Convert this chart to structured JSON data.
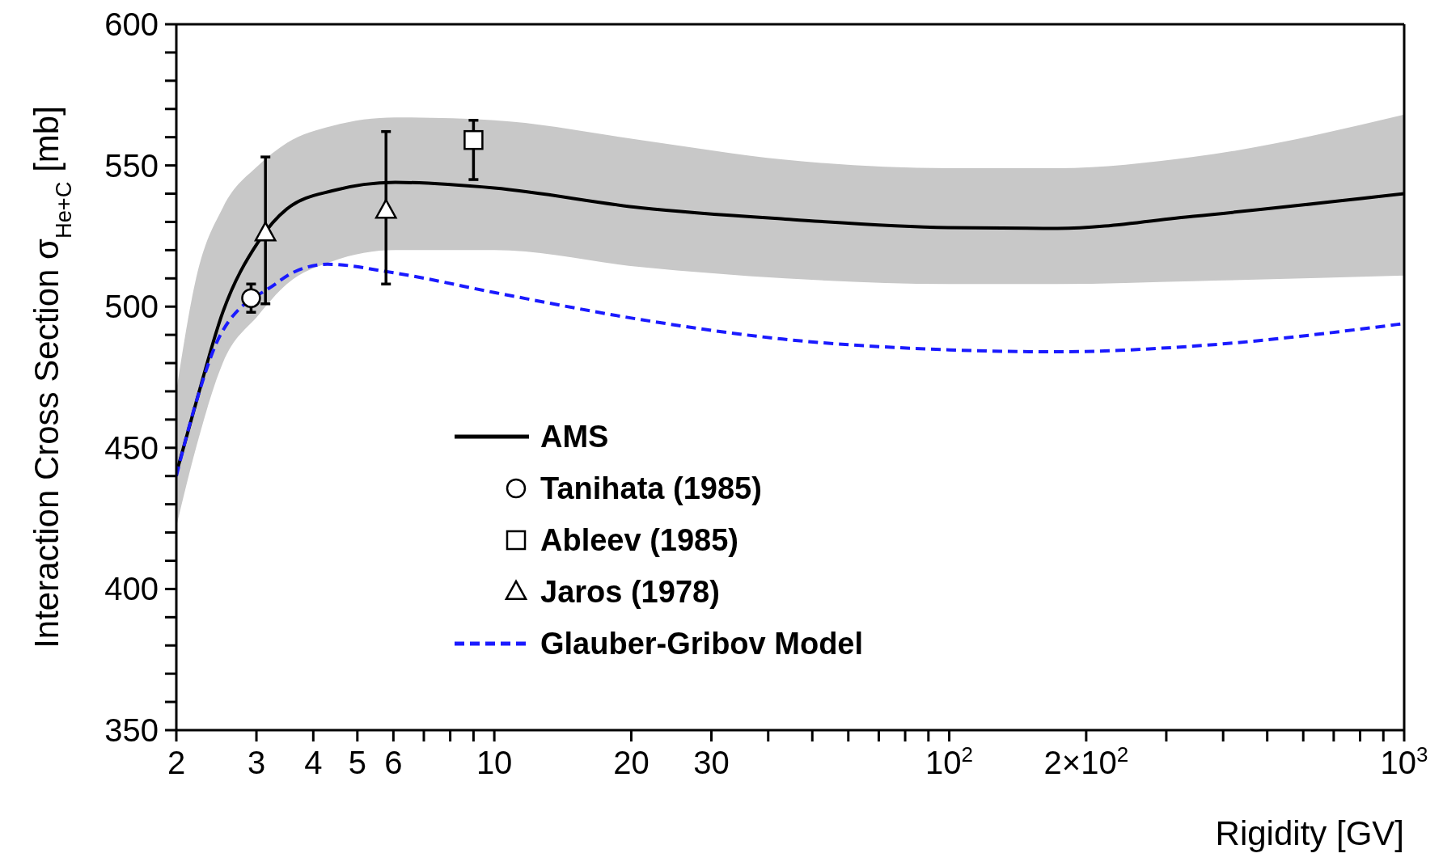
{
  "chart_data": {
    "type": "line",
    "xlabel": "Rigidity [GV]",
    "ylabel": "Interaction Cross Section σ$_{He+C}$  [mb]",
    "log": "x",
    "legend": "bottom",
    "xlim": [
      2,
      1000
    ],
    "ylim": [
      350,
      600
    ],
    "xticks": [
      2,
      3,
      4,
      5,
      6,
      {
        "value": 7,
        "label": null
      },
      {
        "value": 8,
        "label": null
      },
      {
        "value": 9,
        "label": null
      },
      10,
      20,
      30,
      {
        "value": 40,
        "label": null
      },
      {
        "value": 50,
        "label": null
      },
      {
        "value": 60,
        "label": null
      },
      {
        "value": 70,
        "label": null
      },
      {
        "value": 80,
        "label": null
      },
      {
        "value": 90,
        "label": null
      },
      {
        "value": 100,
        "label": "10$^{2}$"
      },
      {
        "value": 200,
        "label": "2×10$^{2}$"
      },
      {
        "value": 300,
        "label": null
      },
      {
        "value": 400,
        "label": null
      },
      {
        "value": 500,
        "label": null
      },
      {
        "value": 600,
        "label": null
      },
      {
        "value": 700,
        "label": null
      },
      {
        "value": 800,
        "label": null
      },
      {
        "value": 900,
        "label": null
      },
      {
        "value": 1000,
        "label": "10$^{3}$"
      }
    ],
    "yticks": [
      350,
      {
        "value": 360,
        "label": null
      },
      {
        "value": 370,
        "label": null
      },
      {
        "value": 380,
        "label": null
      },
      {
        "value": 390,
        "label": null
      },
      400,
      {
        "value": 410,
        "label": null
      },
      {
        "value": 420,
        "label": null
      },
      {
        "value": 430,
        "label": null
      },
      {
        "value": 440,
        "label": null
      },
      450,
      {
        "value": 460,
        "label": null
      },
      {
        "value": 470,
        "label": null
      },
      {
        "value": 480,
        "label": null
      },
      {
        "value": 490,
        "label": null
      },
      500,
      {
        "value": 510,
        "label": null
      },
      {
        "value": 520,
        "label": null
      },
      {
        "value": 530,
        "label": null
      },
      {
        "value": 540,
        "label": null
      },
      550,
      {
        "value": 560,
        "label": null
      },
      {
        "value": 570,
        "label": null
      },
      {
        "value": 580,
        "label": null
      },
      {
        "value": 590,
        "label": null
      },
      600
    ],
    "series": [
      {
        "name": "AMS",
        "color": "#000000",
        "line_style": "solid",
        "marker": "none",
        "x": [
          2,
          2.21,
          2.53,
          3.03,
          3.5,
          4.4,
          6.06,
          10,
          21,
          43.6,
          99.5,
          173,
          344,
          1000
        ],
        "values": [
          441,
          466,
          498,
          523,
          534.6,
          541,
          544,
          542,
          535,
          531,
          528,
          527.7,
          532,
          540
        ],
        "lower": [
          422,
          450,
          480,
          497,
          508,
          516,
          520,
          520,
          514,
          510,
          508,
          508,
          509,
          511
        ],
        "upper": [
          470,
          510,
          535,
          550,
          558,
          564,
          567,
          566,
          559,
          552,
          549,
          549,
          553,
          568
        ]
      },
      {
        "name": "Tanihata (1985)",
        "type": "scatter",
        "color": "#000000",
        "marker": "circle",
        "x": [
          2.92
        ],
        "values": [
          503
        ],
        "errors": [
          [
            498,
            508
          ]
        ]
      },
      {
        "name": "Ableev (1985)",
        "type": "scatter",
        "color": "#000000",
        "marker": "square",
        "x": [
          9.0
        ],
        "values": [
          559
        ],
        "errors": [
          [
            545,
            566
          ]
        ]
      },
      {
        "name": "Jaros (1978)",
        "type": "scatter",
        "color": "#000000",
        "marker": "triangle",
        "x": [
          3.14,
          5.78
        ],
        "values": [
          526,
          534
        ],
        "errors": [
          [
            501,
            553
          ],
          [
            508,
            562
          ]
        ]
      },
      {
        "name": "Glauber-Gribov Model",
        "color": "#1a1aff",
        "line_style": "dashed",
        "marker": "none",
        "x": [
          2,
          2.2,
          2.5,
          3.3,
          3.6,
          4.3,
          6,
          10,
          21,
          43,
          100,
          173,
          344,
          1000
        ],
        "values": [
          440,
          465,
          490,
          508,
          512,
          515,
          512,
          505,
          495.4,
          488.5,
          484.7,
          484,
          486,
          494
        ]
      }
    ]
  }
}
